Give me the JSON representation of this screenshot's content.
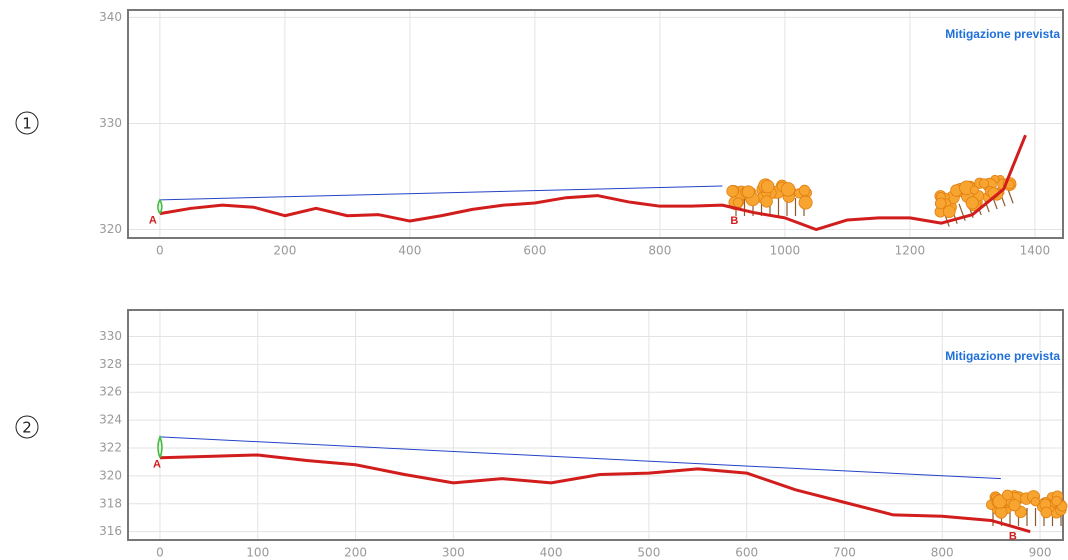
{
  "panel_labels": [
    "1",
    "2"
  ],
  "chart_data": [
    {
      "type": "line",
      "annotation": "Mitigazione prevista",
      "point_labels": [
        "A",
        "B"
      ],
      "xlim": [
        -51,
        1445
      ],
      "ylim": [
        319.2,
        340.7
      ],
      "xticks": [
        0,
        200,
        400,
        600,
        800,
        1000,
        1200,
        1400
      ],
      "yticks": [
        320,
        330,
        340
      ],
      "grid": true,
      "series": [
        {
          "color": "#d21d1d",
          "x": [
            0,
            50,
            100,
            150,
            200,
            250,
            300,
            350,
            400,
            450,
            500,
            550,
            600,
            650,
            700,
            750,
            800,
            850,
            900,
            950,
            1000,
            1050,
            1100,
            1150,
            1200,
            1250,
            1300,
            1350,
            1385
          ],
          "values": [
            321.5,
            322.0,
            322.3,
            322.1,
            321.3,
            322.0,
            321.3,
            321.4,
            320.8,
            321.3,
            321.9,
            322.3,
            322.5,
            323.0,
            323.2,
            322.6,
            322.2,
            322.2,
            322.3,
            321.6,
            321.1,
            320.0,
            320.9,
            321.1,
            321.1,
            320.6,
            321.4,
            323.8,
            328.9
          ]
        },
        {
          "color": "#2443c8",
          "x": [
            0,
            900
          ],
          "values": [
            322.8,
            324.1
          ]
        }
      ]
    },
    {
      "type": "line",
      "annotation": "Mitigazione prevista",
      "point_labels": [
        "A",
        "B"
      ],
      "xlim": [
        -32.7,
        923.5
      ],
      "ylim": [
        315.4,
        331.9
      ],
      "xticks": [
        0,
        100,
        200,
        300,
        400,
        500,
        600,
        700,
        800,
        900
      ],
      "yticks": [
        316,
        318,
        320,
        322,
        324,
        326,
        328,
        330
      ],
      "grid": true,
      "series": [
        {
          "color": "#d21d1d",
          "x": [
            0,
            50,
            100,
            150,
            200,
            250,
            300,
            350,
            400,
            450,
            500,
            550,
            600,
            650,
            700,
            750,
            800,
            850,
            890
          ],
          "values": [
            321.3,
            321.4,
            321.5,
            321.1,
            320.8,
            320.1,
            319.5,
            319.8,
            319.5,
            320.1,
            320.2,
            320.5,
            320.2,
            319.0,
            318.1,
            317.2,
            317.1,
            316.8,
            316.0
          ]
        },
        {
          "color": "#2443c8",
          "x": [
            0,
            860
          ],
          "values": [
            322.8,
            319.8
          ]
        }
      ]
    }
  ]
}
